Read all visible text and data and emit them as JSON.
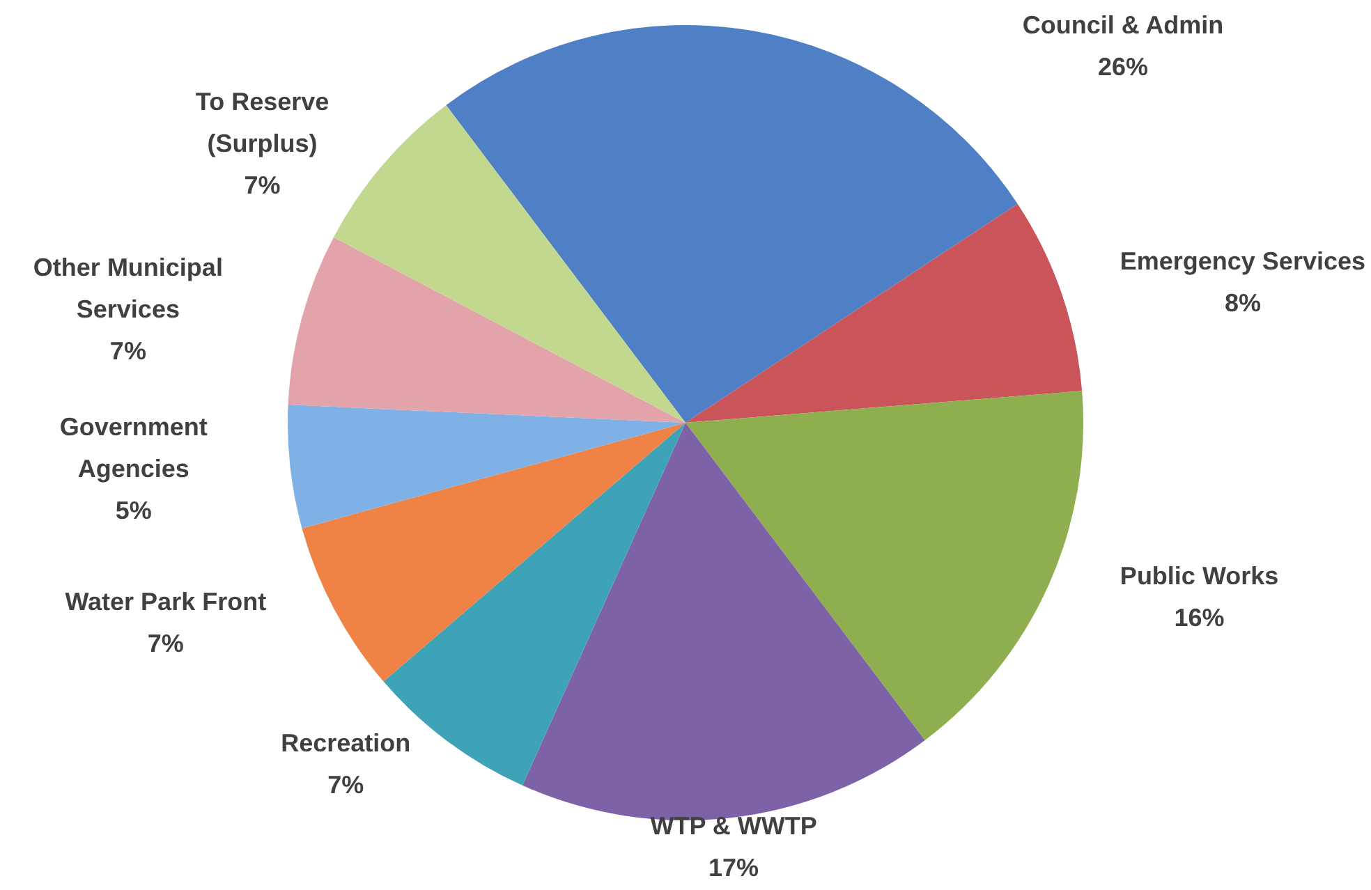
{
  "chart_data": {
    "type": "pie",
    "categories": [
      "Council & Admin",
      "Emergency Services",
      "Public Works",
      "WTP & WWTP",
      "Recreation",
      "Water Park Front",
      "Government\nAgencies",
      "Other Municipal\nServices",
      "To Reserve\n(Surplus)"
    ],
    "values": [
      26,
      8,
      16,
      17,
      7,
      7,
      5,
      7,
      7
    ],
    "colors": [
      "#4f7fc4",
      "#c9545a",
      "#8fae4f",
      "#7d62a8",
      "#3fa3b8",
      "#ef8245",
      "#7fb0e6",
      "#e3a3aa",
      "#c3d88f"
    ],
    "value_labels": [
      "26%",
      "8%",
      "16%",
      "17%",
      "7%",
      "7%",
      "5%",
      "7%",
      "7%"
    ],
    "legend": false
  }
}
